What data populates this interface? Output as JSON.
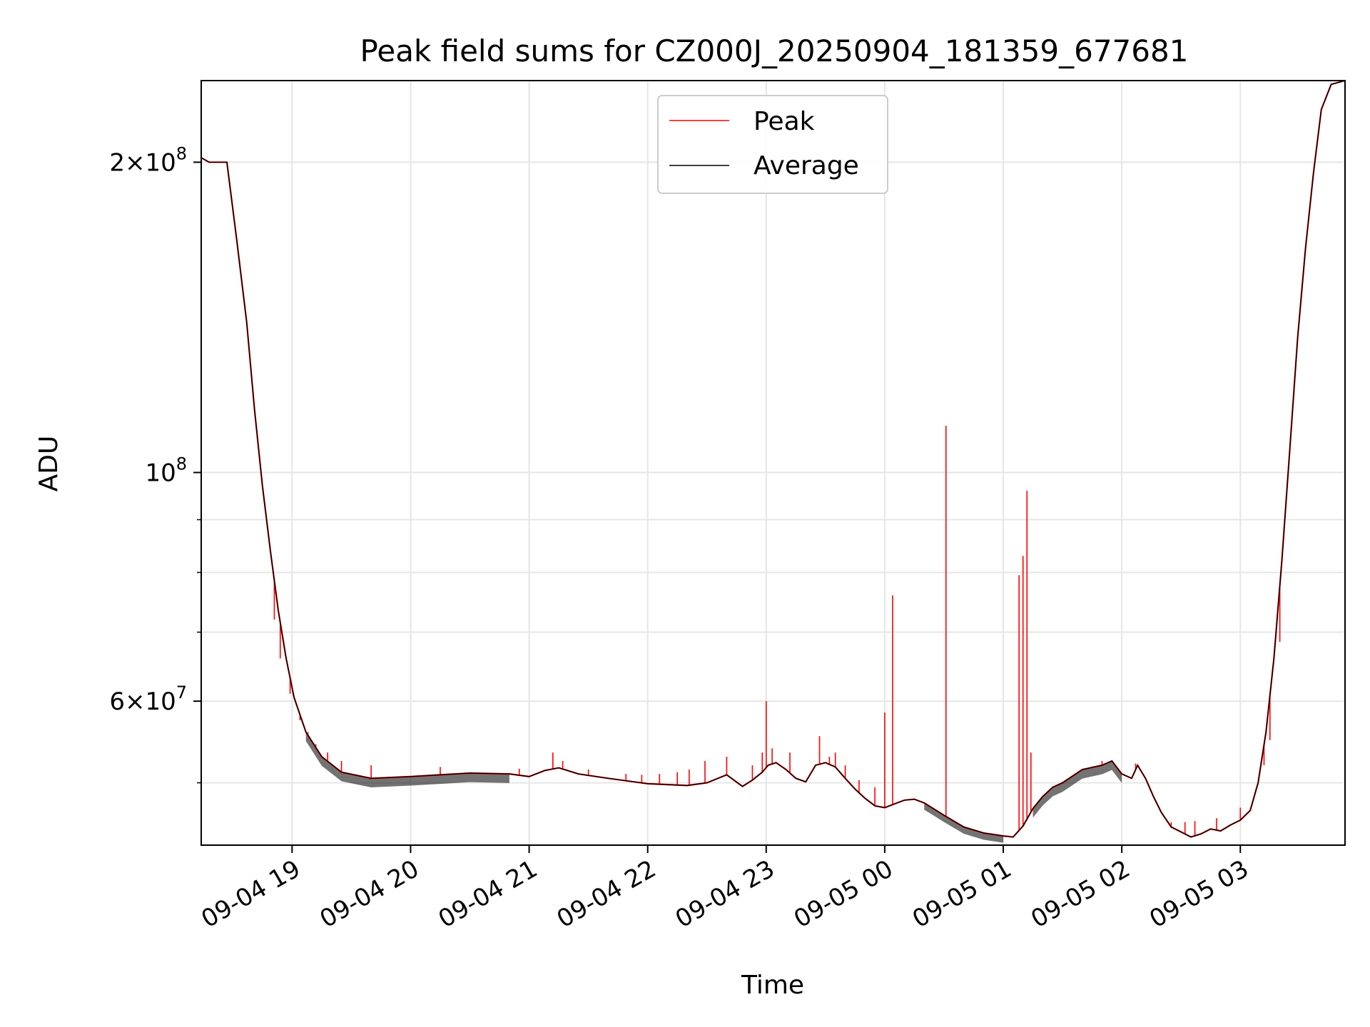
{
  "chart_data": {
    "type": "line",
    "title": "Peak field sums for CZ000J_20250904_181359_677681",
    "xlabel": "Time",
    "ylabel": "ADU",
    "yscale": "log",
    "xlim": [
      "2025-09-04 18:14",
      "2025-09-05 03:53"
    ],
    "ylim": [
      43500000,
      240000000
    ],
    "grid": true,
    "legend_position": "upper center",
    "x_ticks": [
      {
        "time": "2025-09-04 19:00",
        "label": "09-04 19"
      },
      {
        "time": "2025-09-04 20:00",
        "label": "09-04 20"
      },
      {
        "time": "2025-09-04 21:00",
        "label": "09-04 21"
      },
      {
        "time": "2025-09-04 22:00",
        "label": "09-04 22"
      },
      {
        "time": "2025-09-04 23:00",
        "label": "09-04 23"
      },
      {
        "time": "2025-09-05 00:00",
        "label": "09-05 00"
      },
      {
        "time": "2025-09-05 01:00",
        "label": "09-05 01"
      },
      {
        "time": "2025-09-05 02:00",
        "label": "09-05 02"
      },
      {
        "time": "2025-09-05 03:00",
        "label": "09-05 03"
      }
    ],
    "y_major_ticks": [
      {
        "value": 100000000,
        "mantissa": "",
        "base": "10",
        "exp": "8"
      },
      {
        "value": 200000000,
        "mantissa": "2×",
        "base": "10",
        "exp": "8"
      },
      {
        "value": 60000000,
        "mantissa": "6×",
        "base": "10",
        "exp": "7"
      }
    ],
    "y_minor_ticks": [
      50000000,
      70000000,
      80000000,
      90000000
    ],
    "series": [
      {
        "name": "Average",
        "color": "#000000",
        "points": [
          [
            "2025-09-04 18:14",
            202000000
          ],
          [
            "2025-09-04 18:18",
            200000000
          ],
          [
            "2025-09-04 18:27",
            200000000
          ],
          [
            "2025-09-04 18:32",
            168000000
          ],
          [
            "2025-09-04 18:37",
            140000000
          ],
          [
            "2025-09-04 18:41",
            115000000
          ],
          [
            "2025-09-04 18:45",
            97000000
          ],
          [
            "2025-09-04 18:49",
            84000000
          ],
          [
            "2025-09-04 18:53",
            73500000
          ],
          [
            "2025-09-04 18:57",
            66000000
          ],
          [
            "2025-09-04 19:01",
            60500000
          ],
          [
            "2025-09-04 19:07",
            56000000
          ],
          [
            "2025-09-04 19:15",
            53000000
          ],
          [
            "2025-09-04 19:25",
            51200000
          ],
          [
            "2025-09-04 19:40",
            50500000
          ],
          [
            "2025-09-04 20:00",
            50700000
          ],
          [
            "2025-09-04 20:30",
            51100000
          ],
          [
            "2025-09-04 20:50",
            51000000
          ],
          [
            "2025-09-04 21:00",
            50700000
          ],
          [
            "2025-09-04 21:08",
            51400000
          ],
          [
            "2025-09-04 21:15",
            51700000
          ],
          [
            "2025-09-04 21:25",
            51000000
          ],
          [
            "2025-09-04 21:40",
            50500000
          ],
          [
            "2025-09-04 22:00",
            49900000
          ],
          [
            "2025-09-04 22:20",
            49700000
          ],
          [
            "2025-09-04 22:30",
            50000000
          ],
          [
            "2025-09-04 22:40",
            50900000
          ],
          [
            "2025-09-04 22:48",
            49600000
          ],
          [
            "2025-09-04 22:53",
            50300000
          ],
          [
            "2025-09-04 22:58",
            51200000
          ],
          [
            "2025-09-04 23:01",
            52000000
          ],
          [
            "2025-09-04 23:05",
            52300000
          ],
          [
            "2025-09-04 23:10",
            51500000
          ],
          [
            "2025-09-04 23:15",
            50500000
          ],
          [
            "2025-09-04 23:20",
            50100000
          ],
          [
            "2025-09-04 23:25",
            52000000
          ],
          [
            "2025-09-04 23:30",
            52300000
          ],
          [
            "2025-09-04 23:35",
            51800000
          ],
          [
            "2025-09-04 23:40",
            50500000
          ],
          [
            "2025-09-04 23:45",
            49300000
          ],
          [
            "2025-09-04 23:50",
            48300000
          ],
          [
            "2025-09-04 23:55",
            47500000
          ],
          [
            "2025-09-05 00:00",
            47300000
          ],
          [
            "2025-09-05 00:05",
            47700000
          ],
          [
            "2025-09-05 00:10",
            48100000
          ],
          [
            "2025-09-05 00:15",
            48200000
          ],
          [
            "2025-09-05 00:20",
            47800000
          ],
          [
            "2025-09-05 00:30",
            46500000
          ],
          [
            "2025-09-05 00:40",
            45300000
          ],
          [
            "2025-09-05 00:50",
            44700000
          ],
          [
            "2025-09-05 01:00",
            44400000
          ],
          [
            "2025-09-05 01:05",
            44300000
          ],
          [
            "2025-09-05 01:10",
            45400000
          ],
          [
            "2025-09-05 01:15",
            47200000
          ],
          [
            "2025-09-05 01:20",
            48500000
          ],
          [
            "2025-09-05 01:25",
            49500000
          ],
          [
            "2025-09-05 01:30",
            50000000
          ],
          [
            "2025-09-05 01:40",
            51500000
          ],
          [
            "2025-09-05 01:50",
            52000000
          ],
          [
            "2025-09-05 01:55",
            52500000
          ],
          [
            "2025-09-05 02:00",
            51000000
          ],
          [
            "2025-09-05 02:05",
            50500000
          ],
          [
            "2025-09-05 02:08",
            52000000
          ],
          [
            "2025-09-05 02:12",
            50500000
          ],
          [
            "2025-09-05 02:16",
            48500000
          ],
          [
            "2025-09-05 02:20",
            46800000
          ],
          [
            "2025-09-05 02:25",
            45300000
          ],
          [
            "2025-09-05 02:30",
            44800000
          ],
          [
            "2025-09-05 02:35",
            44300000
          ],
          [
            "2025-09-05 02:40",
            44600000
          ],
          [
            "2025-09-05 02:45",
            45100000
          ],
          [
            "2025-09-05 02:50",
            44900000
          ],
          [
            "2025-09-05 02:55",
            45500000
          ],
          [
            "2025-09-05 03:00",
            46000000
          ],
          [
            "2025-09-05 03:05",
            47000000
          ],
          [
            "2025-09-05 03:09",
            50000000
          ],
          [
            "2025-09-05 03:13",
            56000000
          ],
          [
            "2025-09-05 03:17",
            66000000
          ],
          [
            "2025-09-05 03:21",
            82000000
          ],
          [
            "2025-09-05 03:25",
            105000000
          ],
          [
            "2025-09-05 03:29",
            135000000
          ],
          [
            "2025-09-05 03:33",
            165000000
          ],
          [
            "2025-09-05 03:37",
            195000000
          ],
          [
            "2025-09-05 03:41",
            225000000
          ],
          [
            "2025-09-05 03:46",
            238000000
          ],
          [
            "2025-09-05 03:53",
            240000000
          ]
        ]
      },
      {
        "name": "Peak",
        "color": "#ff0000",
        "spikes": [
          [
            "2025-09-04 18:51",
            72000000
          ],
          [
            "2025-09-04 18:54",
            66000000
          ],
          [
            "2025-09-04 18:59",
            61000000
          ],
          [
            "2025-09-04 19:04",
            57500000
          ],
          [
            "2025-09-04 19:08",
            56000000
          ],
          [
            "2025-09-04 19:12",
            54500000
          ],
          [
            "2025-09-04 19:18",
            53500000
          ],
          [
            "2025-09-04 19:25",
            52500000
          ],
          [
            "2025-09-04 19:40",
            52000000
          ],
          [
            "2025-09-04 20:15",
            51800000
          ],
          [
            "2025-09-04 20:55",
            51600000
          ],
          [
            "2025-09-04 21:12",
            53500000
          ],
          [
            "2025-09-04 21:17",
            52500000
          ],
          [
            "2025-09-04 21:30",
            51500000
          ],
          [
            "2025-09-04 21:49",
            51000000
          ],
          [
            "2025-09-04 21:57",
            50900000
          ],
          [
            "2025-09-04 22:06",
            51000000
          ],
          [
            "2025-09-04 22:15",
            51200000
          ],
          [
            "2025-09-04 22:21",
            51500000
          ],
          [
            "2025-09-04 22:29",
            52500000
          ],
          [
            "2025-09-04 22:40",
            53000000
          ],
          [
            "2025-09-04 22:53",
            52000000
          ],
          [
            "2025-09-04 22:58",
            53500000
          ],
          [
            "2025-09-04 23:00",
            60000000
          ],
          [
            "2025-09-04 23:03",
            54000000
          ],
          [
            "2025-09-04 23:12",
            53500000
          ],
          [
            "2025-09-04 23:27",
            55500000
          ],
          [
            "2025-09-04 23:32",
            53000000
          ],
          [
            "2025-09-04 23:35",
            53500000
          ],
          [
            "2025-09-04 23:40",
            52000000
          ],
          [
            "2025-09-04 23:47",
            50300000
          ],
          [
            "2025-09-04 23:55",
            49500000
          ],
          [
            "2025-09-05 00:00",
            58500000
          ],
          [
            "2025-09-05 00:04",
            76000000
          ],
          [
            "2025-09-05 00:31",
            111000000
          ],
          [
            "2025-09-05 01:08",
            79500000
          ],
          [
            "2025-09-05 01:10",
            83000000
          ],
          [
            "2025-09-05 01:12",
            96000000
          ],
          [
            "2025-09-05 01:14",
            53500000
          ],
          [
            "2025-09-05 01:50",
            52500000
          ],
          [
            "2025-09-05 02:07",
            52200000
          ],
          [
            "2025-09-05 02:25",
            45800000
          ],
          [
            "2025-09-05 02:32",
            45800000
          ],
          [
            "2025-09-05 02:37",
            45900000
          ],
          [
            "2025-09-05 02:48",
            46200000
          ],
          [
            "2025-09-05 03:00",
            47300000
          ],
          [
            "2025-09-05 03:12",
            52000000
          ],
          [
            "2025-09-05 03:15",
            55000000
          ],
          [
            "2025-09-05 03:20",
            68500000
          ]
        ]
      }
    ]
  }
}
